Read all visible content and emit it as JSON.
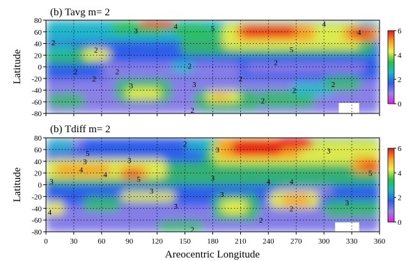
{
  "figure": {
    "xlabel": "Areocentric Longitude",
    "xticks": [
      0,
      30,
      60,
      90,
      120,
      150,
      180,
      210,
      240,
      270,
      300,
      330,
      360
    ]
  },
  "chart_data": [
    {
      "type": "heatmap",
      "title": "(b)  Tavg   m= 2",
      "xlabel": "",
      "ylabel": "Latitude",
      "xlim": [
        0,
        360
      ],
      "ylim": [
        -80,
        80
      ],
      "xticks": [
        0,
        30,
        60,
        90,
        120,
        150,
        180,
        210,
        240,
        270,
        300,
        330,
        360
      ],
      "yticks": [
        -80,
        -60,
        -40,
        -20,
        0,
        20,
        40,
        60,
        80
      ],
      "colorbar": {
        "range": [
          0,
          6
        ],
        "ticks": [
          0,
          2,
          4,
          6
        ],
        "colors": [
          "#e020e0",
          "#9a82e6",
          "#2f5fe8",
          "#18b8c8",
          "#28c050",
          "#eef04a",
          "#f5a020",
          "#e81818"
        ]
      },
      "grid": "dotted",
      "contour_labels": [
        {
          "lon": 8,
          "lat": 42,
          "text": "2"
        },
        {
          "lon": 97,
          "lat": 62,
          "text": "3"
        },
        {
          "lon": 140,
          "lat": 70,
          "text": "4"
        },
        {
          "lon": 180,
          "lat": 66,
          "text": "5"
        },
        {
          "lon": 265,
          "lat": 30,
          "text": "5"
        },
        {
          "lon": 338,
          "lat": 60,
          "text": "4"
        },
        {
          "lon": 300,
          "lat": 74,
          "text": "4"
        },
        {
          "lon": 54,
          "lat": 29,
          "text": "2"
        },
        {
          "lon": 32,
          "lat": -8,
          "text": "2"
        },
        {
          "lon": 77,
          "lat": -8,
          "text": "2"
        },
        {
          "lon": 52,
          "lat": -20,
          "text": "2"
        },
        {
          "lon": 155,
          "lat": 2,
          "text": "2"
        },
        {
          "lon": 210,
          "lat": -20,
          "text": "2"
        },
        {
          "lon": 248,
          "lat": 8,
          "text": "2"
        },
        {
          "lon": 92,
          "lat": -32,
          "text": "3"
        },
        {
          "lon": 160,
          "lat": -30,
          "text": "3"
        },
        {
          "lon": 158,
          "lat": -74,
          "text": "2"
        },
        {
          "lon": 234,
          "lat": -58,
          "text": "2"
        },
        {
          "lon": 268,
          "lat": -40,
          "text": "2"
        },
        {
          "lon": 310,
          "lat": -30,
          "text": "2"
        }
      ]
    },
    {
      "type": "heatmap",
      "title": "(b)  Tdiff   m= 2",
      "xlabel": "Areocentric Longitude",
      "ylabel": "Latitude",
      "xlim": [
        0,
        360
      ],
      "ylim": [
        -80,
        80
      ],
      "xticks": [
        0,
        30,
        60,
        90,
        120,
        150,
        180,
        210,
        240,
        270,
        300,
        330,
        360
      ],
      "yticks": [
        -80,
        -60,
        -40,
        -20,
        0,
        20,
        40,
        60,
        80
      ],
      "colorbar": {
        "range": [
          0,
          6
        ],
        "ticks": [
          0,
          2,
          4,
          6
        ],
        "colors": [
          "#e020e0",
          "#9a82e6",
          "#2f5fe8",
          "#18b8c8",
          "#28c050",
          "#eef04a",
          "#f5a020",
          "#e81818"
        ]
      },
      "grid": "dotted",
      "contour_labels": [
        {
          "lon": 45,
          "lat": 54,
          "text": "5"
        },
        {
          "lon": 90,
          "lat": 42,
          "text": "3"
        },
        {
          "lon": 150,
          "lat": 70,
          "text": "2"
        },
        {
          "lon": 185,
          "lat": 60,
          "text": "3"
        },
        {
          "lon": 305,
          "lat": 58,
          "text": "3"
        },
        {
          "lon": 38,
          "lat": 26,
          "text": "4"
        },
        {
          "lon": 42,
          "lat": 40,
          "text": "3"
        },
        {
          "lon": 64,
          "lat": 18,
          "text": "4"
        },
        {
          "lon": 100,
          "lat": 10,
          "text": "5"
        },
        {
          "lon": 6,
          "lat": 6,
          "text": "3"
        },
        {
          "lon": 180,
          "lat": 12,
          "text": "3"
        },
        {
          "lon": 240,
          "lat": 6,
          "text": "4"
        },
        {
          "lon": 265,
          "lat": 6,
          "text": "4"
        },
        {
          "lon": 350,
          "lat": 20,
          "text": "5"
        },
        {
          "lon": 114,
          "lat": -10,
          "text": "3"
        },
        {
          "lon": 190,
          "lat": -16,
          "text": "3"
        },
        {
          "lon": 140,
          "lat": -36,
          "text": "3"
        },
        {
          "lon": 4,
          "lat": -46,
          "text": "4"
        },
        {
          "lon": 158,
          "lat": -76,
          "text": "2"
        },
        {
          "lon": 232,
          "lat": -60,
          "text": "2"
        },
        {
          "lon": 265,
          "lat": -40,
          "text": "2"
        },
        {
          "lon": 325,
          "lat": -30,
          "text": "3"
        }
      ]
    }
  ]
}
